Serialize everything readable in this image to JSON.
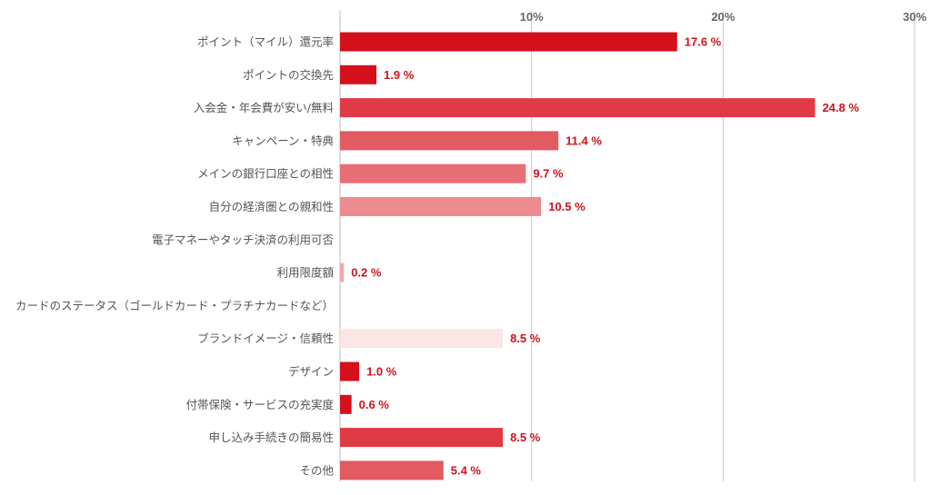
{
  "chart_data": {
    "type": "bar",
    "orientation": "horizontal",
    "categories": [
      "ポイント（マイル）還元率",
      "ポイントの交換先",
      "入会金・年会費が安い/無料",
      "キャンペーン・特典",
      "メインの銀行口座との相性",
      "自分の経済圏との親和性",
      "電子マネーやタッチ決済の利用可否",
      "利用限度額",
      "カードのステータス（ゴールドカード・プラチナカードなど）",
      "ブランドイメージ・信頼性",
      "デザイン",
      "付帯保険・サービスの充実度",
      "申し込み手続きの簡易性",
      "その他"
    ],
    "values": [
      17.6,
      1.9,
      24.8,
      11.4,
      9.7,
      10.5,
      0,
      0.2,
      0,
      8.5,
      1.0,
      0.6,
      8.5,
      5.4
    ],
    "value_labels": [
      "17.6 %",
      "1.9 %",
      "24.8 %",
      "11.4 %",
      "9.7 %",
      "10.5 %",
      "",
      "0.2 %",
      "",
      "8.5 %",
      "1.0 %",
      "0.6 %",
      "8.5 %",
      "5.4 %"
    ],
    "bar_colors": [
      "#d4101b",
      "#d4101b",
      "#e03a47",
      "#e25a62",
      "#e76e75",
      "#ec8b90",
      "#f1a8ab",
      "#f1a8ab",
      "#f5c2c4",
      "#fbe5e5",
      "#d4101b",
      "#d4101b",
      "#e03a47",
      "#e25a62"
    ],
    "value_label_color": "#d0121b",
    "xlim": [
      0,
      30
    ],
    "ticks": [
      10,
      20,
      30
    ],
    "tick_labels": [
      "10%",
      "20%",
      "30%"
    ],
    "grid": true,
    "legend": "none"
  }
}
